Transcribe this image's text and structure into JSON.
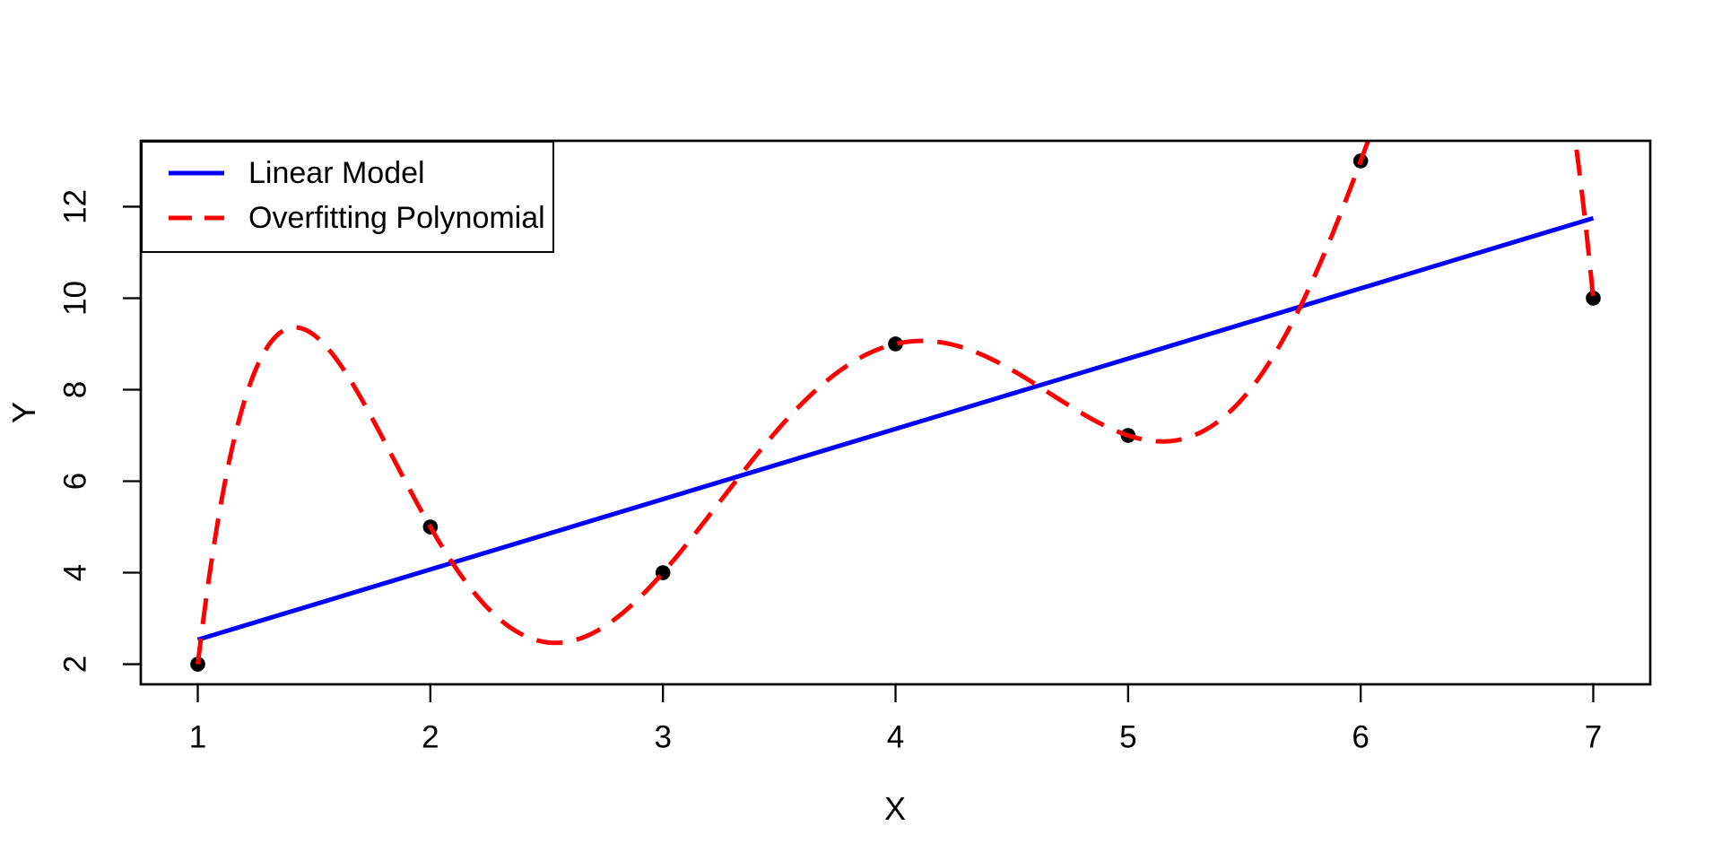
{
  "chart_data": {
    "type": "scatter",
    "title": "",
    "xlabel": "X",
    "ylabel": "Y",
    "x_ticks": [
      1,
      2,
      3,
      4,
      5,
      6,
      7
    ],
    "y_ticks": [
      2,
      4,
      6,
      8,
      10,
      12
    ],
    "xlim": [
      0.755,
      7.245
    ],
    "ylim": [
      1.56,
      13.44
    ],
    "grid": false,
    "background": "#FFFFFF",
    "axis_color": "#000000",
    "points": {
      "name": "data-points",
      "x": [
        1,
        2,
        3,
        4,
        5,
        6,
        7
      ],
      "y": [
        2,
        5,
        4,
        9,
        7,
        13,
        10
      ],
      "color": "#000000"
    },
    "series": [
      {
        "name": "Linear Model",
        "type": "line",
        "line_style": "solid",
        "color": "#0000FF",
        "slope": 1.535714,
        "intercept": 1.0,
        "x_range": [
          1,
          7
        ]
      },
      {
        "name": "Overfitting Polynomial",
        "type": "curve",
        "line_style": "dashed",
        "color": "#FF0000",
        "degree": 6,
        "interpolates_points": true,
        "x_range": [
          1,
          7
        ]
      }
    ],
    "legend": {
      "position": "topleft"
    }
  }
}
